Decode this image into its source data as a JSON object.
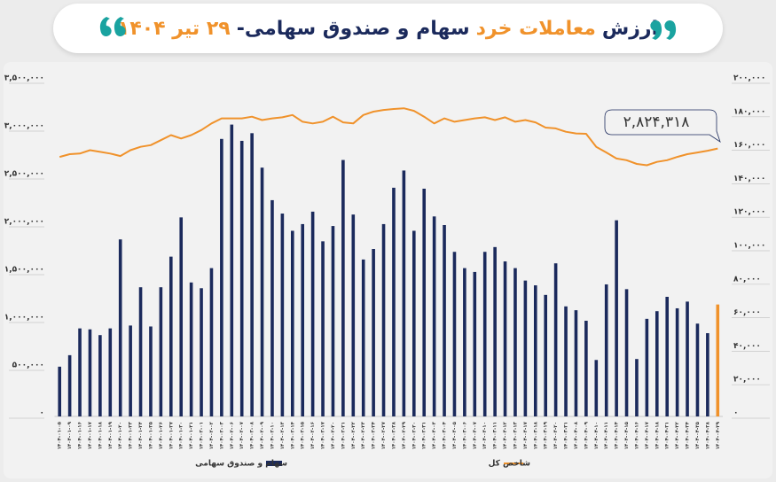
{
  "chart_data": {
    "type": "bar_line",
    "title": [
      "ارزش",
      "معاملات خرد",
      "سهام و صندوق سهامی-",
      "۲۹ تیر ۱۴۰۴"
    ],
    "title_colors": [
      "#1b2a5c",
      "#f0922b",
      "#1b2a5c",
      "#f0922b"
    ],
    "annotation": "۲,۸۲۴,۳۱۸",
    "categories": [
      "۱۴۰۴-۰۱-۰۵",
      "۱۴۰۴-۰۱-۰۹",
      "۱۴۰۴-۰۱-۱۶",
      "۱۴۰۴-۰۱-۱۷",
      "۱۴۰۴-۰۱-۱۸",
      "۱۴۰۴-۰۱-۱۹",
      "۱۴۰۴-۰۱-۲۰",
      "۱۴۰۴-۰۱-۲۳",
      "۱۴۰۴-۰۱-۲۴",
      "۱۴۰۴-۰۱-۲۵",
      "۱۴۰۴-۰۱-۲۶",
      "۱۴۰۴-۰۱-۲۷",
      "۱۴۰۴-۰۱-۳۰",
      "۱۴۰۴-۰۱-۳۱",
      "۱۴۰۴-۰۲-۰۱",
      "۱۴۰۴-۰۲-۰۲",
      "۱۴۰۴-۰۲-۰۳",
      "۱۴۰۴-۰۲-۰۶",
      "۱۴۰۴-۰۲-۰۷",
      "۱۴۰۴-۰۲-۰۸",
      "۱۴۰۴-۰۲-۰۹",
      "۱۴۰۴-۰۲-۱۰",
      "۱۴۰۴-۰۲-۱۳",
      "۱۴۰۴-۰۲-۱۴",
      "۱۴۰۴-۰۲-۱۵",
      "۱۴۰۴-۰۲-۱۶",
      "۱۴۰۴-۰۲-۱۷",
      "۱۴۰۴-۰۲-۲۰",
      "۱۴۰۴-۰۲-۲۱",
      "۱۴۰۴-۰۲-۲۲",
      "۱۴۰۴-۰۲-۲۳",
      "۱۴۰۴-۰۲-۲۴",
      "۱۴۰۴-۰۲-۲۷",
      "۱۴۰۴-۰۲-۲۸",
      "۱۴۰۴-۰۲-۲۹",
      "۱۴۰۴-۰۲-۳۰",
      "۱۴۰۴-۰۲-۳۱",
      "۱۴۰۴-۰۳-۰۳",
      "۱۴۰۴-۰۳-۰۴",
      "۱۴۰۴-۰۳-۰۵",
      "۱۴۰۴-۰۳-۰۶",
      "۱۴۰۴-۰۳-۰۷",
      "۱۴۰۴-۰۳-۱۰",
      "۱۴۰۴-۰۳-۱۱",
      "۱۴۰۴-۰۳-۱۲",
      "۱۴۰۴-۰۳-۱۳",
      "۱۴۰۴-۰۳-۱۷",
      "۱۴۰۴-۰۳-۱۸",
      "۱۴۰۴-۰۳-۱۹",
      "۱۴۰۴-۰۳-۲۰",
      "۱۴۰۴-۰۳-۲۱",
      "۱۴۰۴-۰۴-۰۸",
      "۱۴۰۴-۰۴-۰۹",
      "۱۴۰۴-۰۴-۱۰",
      "۱۴۰۴-۰۴-۱۱",
      "۱۴۰۴-۰۴-۱۴",
      "۱۴۰۴-۰۴-۱۵",
      "۱۴۰۴-۰۴-۱۶",
      "۱۴۰۴-۰۴-۱۷",
      "۱۴۰۴-۰۴-۱۸",
      "۱۴۰۴-۰۴-۲۱",
      "۱۴۰۴-۰۴-۲۲",
      "۱۴۰۴-۰۴-۲۴",
      "۱۴۰۴-۰۴-۲۵",
      "۱۴۰۴-۰۴-۲۸",
      "۱۴۰۴-۰۴-۲۹"
    ],
    "series": [
      {
        "name": "سهام و صندوق سهامی",
        "color": "#1b2a5c",
        "highlight": {
          "index": 65,
          "color": "#f0922b"
        },
        "values": [
          520000,
          640000,
          920000,
          910000,
          850000,
          920000,
          1850000,
          950000,
          1350000,
          940000,
          1350000,
          1670000,
          2080000,
          1400000,
          1340000,
          1550000,
          2900000,
          3050000,
          2880000,
          2960000,
          2600000,
          2260000,
          2120000,
          1940000,
          2010000,
          2140000,
          1830000,
          1990000,
          2680000,
          2110000,
          1640000,
          1750000,
          2010000,
          2390000,
          2570000,
          1940000,
          2380000,
          2090000,
          2000000,
          1720000,
          1550000,
          1510000,
          1720000,
          1770000,
          1620000,
          1550000,
          1420000,
          1370000,
          1270000,
          1600000,
          1150000,
          1110000,
          1000000,
          590000,
          1380000,
          2050000,
          1330000,
          600000,
          1020000,
          1100000,
          1250000,
          1130000,
          1200000,
          970000,
          870000,
          1170000
        ]
      },
      {
        "name": "شاخص کل",
        "color": "#f0922b",
        "axis": "y2",
        "values": [
          155000,
          156600,
          157000,
          159000,
          158000,
          157000,
          155500,
          159000,
          161000,
          162000,
          165000,
          168000,
          166000,
          168000,
          171000,
          175000,
          178000,
          178000,
          178000,
          179000,
          177000,
          178000,
          178600,
          180000,
          176000,
          175000,
          176000,
          179000,
          175600,
          175000,
          180000,
          182000,
          183000,
          183600,
          184000,
          182500,
          179000,
          175000,
          178000,
          176000,
          177000,
          178000,
          178600,
          177000,
          178600,
          176000,
          177000,
          175600,
          172500,
          172000,
          170000,
          169000,
          168800,
          161000,
          157600,
          154000,
          153000,
          150800,
          150000,
          152000,
          153000,
          155000,
          156600,
          157600,
          158700,
          160000
        ]
      }
    ],
    "ylim": [
      0,
      3500000
    ],
    "yticks": [
      {
        "value": 0,
        "label": "۰"
      },
      {
        "value": 500000,
        "label": "۵۰۰,۰۰۰"
      },
      {
        "value": 1000000,
        "label": "۱,۰۰۰,۰۰۰"
      },
      {
        "value": 1500000,
        "label": "۱,۵۰۰,۰۰۰"
      },
      {
        "value": 2000000,
        "label": "۲,۰۰۰,۰۰۰"
      },
      {
        "value": 2500000,
        "label": "۲,۵۰۰,۰۰۰"
      },
      {
        "value": 3000000,
        "label": "۳,۰۰۰,۰۰۰"
      },
      {
        "value": 3500000,
        "label": "۳,۵۰۰,۰۰۰"
      }
    ],
    "y2lim": [
      0,
      200000
    ],
    "y2ticks": [
      {
        "value": 0,
        "label": "۰"
      },
      {
        "value": 20000,
        "label": "۲۰,۰۰۰"
      },
      {
        "value": 40000,
        "label": "۴۰,۰۰۰"
      },
      {
        "value": 60000,
        "label": "۶۰,۰۰۰"
      },
      {
        "value": 80000,
        "label": "۸۰,۰۰۰"
      },
      {
        "value": 100000,
        "label": "۱۰۰,۰۰۰"
      },
      {
        "value": 120000,
        "label": "۱۲۰,۰۰۰"
      },
      {
        "value": 140000,
        "label": "۱۴۰,۰۰۰"
      },
      {
        "value": 160000,
        "label": "۱۶۰,۰۰۰"
      },
      {
        "value": 180000,
        "label": "۱۸۰,۰۰۰"
      },
      {
        "value": 200000,
        "label": "۲۰۰,۰۰۰"
      }
    ],
    "grid": false,
    "legend": "bottom"
  }
}
